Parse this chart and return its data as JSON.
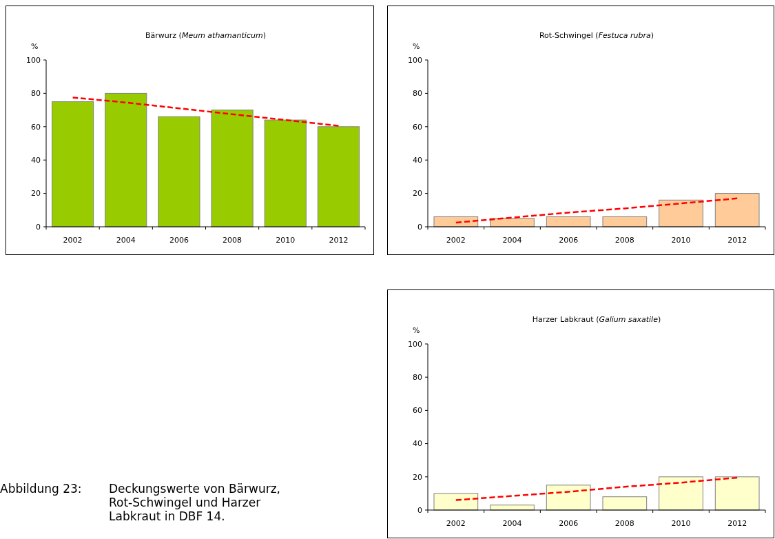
{
  "chart_data": [
    {
      "type": "bar",
      "title": "Bärwurz (Meum athamanticum)",
      "ylabel": "%",
      "categories": [
        "2002",
        "2004",
        "2006",
        "2008",
        "2010",
        "2012"
      ],
      "ylim": [
        0,
        100
      ],
      "yticks": [
        0,
        20,
        40,
        60,
        80,
        100
      ],
      "series": [
        {
          "type": "bar",
          "color": "#99cc00",
          "values": [
            75,
            80,
            66,
            70,
            64,
            60
          ]
        },
        {
          "type": "line",
          "color": "#ff0000",
          "line_style": "dashed",
          "marker": "none",
          "values": [
            77.5,
            74.5,
            71,
            67.5,
            64,
            60.5
          ]
        }
      ]
    },
    {
      "type": "bar",
      "title": "Rot-Schwingel (Festuca rubra)",
      "ylabel": "%",
      "categories": [
        "2002",
        "2004",
        "2006",
        "2008",
        "2010",
        "2012"
      ],
      "ylim": [
        0,
        100
      ],
      "yticks": [
        0,
        20,
        40,
        60,
        80,
        100
      ],
      "series": [
        {
          "type": "bar",
          "color": "#ffcc99",
          "values": [
            6,
            5,
            6,
            6,
            16,
            20
          ]
        },
        {
          "type": "line",
          "color": "#ff0000",
          "line_style": "dashed",
          "marker": "none",
          "values": [
            2.5,
            5.5,
            8.5,
            11,
            14,
            17
          ]
        }
      ]
    },
    {
      "type": "bar",
      "title": "Harzer Labkraut (Galium saxatile)",
      "ylabel": "%",
      "categories": [
        "2002",
        "2004",
        "2006",
        "2008",
        "2010",
        "2012"
      ],
      "ylim": [
        0,
        100
      ],
      "yticks": [
        0,
        20,
        40,
        60,
        80,
        100
      ],
      "series": [
        {
          "type": "bar",
          "color": "#ffffcc",
          "values": [
            10,
            3,
            15,
            8,
            20,
            20
          ]
        },
        {
          "type": "line",
          "color": "#ff0000",
          "line_style": "dashed",
          "marker": "none",
          "values": [
            6,
            8.5,
            11,
            14,
            16.5,
            19.5
          ]
        }
      ]
    },
    {
      "type": "other",
      "annotations": [
        "Abbildung 23: Deckungswerte von Bärwurz, Rot-Schwingel und Harzer Labkraut in DBF 14."
      ]
    }
  ]
}
